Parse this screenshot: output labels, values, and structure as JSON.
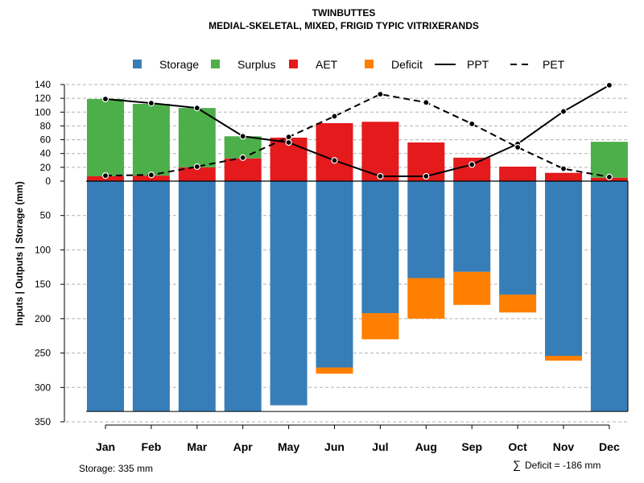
{
  "chart_data": {
    "type": "bar",
    "title": "TWINBUTTES",
    "subtitle": "MEDIAL-SKELETAL, MIXED, FRIGID TYPIC VITRIXERANDS",
    "ylabel": "Inputs | Outputs | Storage     (mm)",
    "categories": [
      "Jan",
      "Feb",
      "Mar",
      "Apr",
      "May",
      "Jun",
      "Jul",
      "Aug",
      "Sep",
      "Oct",
      "Nov",
      "Dec"
    ],
    "upper_ticks": [
      "0",
      "20",
      "40",
      "60",
      "80",
      "100",
      "120",
      "140"
    ],
    "lower_ticks": [
      "50",
      "100",
      "150",
      "200",
      "250",
      "300",
      "350"
    ],
    "upper_ylim": [
      0,
      140
    ],
    "lower_ylim": [
      0,
      350
    ],
    "legend": [
      {
        "label": "Storage",
        "color": "#377EB8",
        "kind": "square"
      },
      {
        "label": "Surplus",
        "color": "#4DAF4A",
        "kind": "square"
      },
      {
        "label": "AET",
        "color": "#E41A1C",
        "kind": "square"
      },
      {
        "label": "Deficit",
        "color": "#FF7F00",
        "kind": "square"
      },
      {
        "label": "PPT",
        "color": "#000000",
        "kind": "solid-line"
      },
      {
        "label": "PET",
        "color": "#000000",
        "kind": "dashed-line"
      }
    ],
    "series": [
      {
        "name": "AET",
        "color": "#E41A1C",
        "values": [
          7,
          8,
          20,
          33,
          63,
          84,
          86,
          56,
          34,
          21,
          12,
          5
        ]
      },
      {
        "name": "Surplus",
        "color": "#4DAF4A",
        "values": [
          112,
          104,
          86,
          32,
          0,
          0,
          0,
          0,
          0,
          0,
          0,
          52
        ]
      },
      {
        "name": "Storage",
        "color": "#377EB8",
        "values": [
          335,
          335,
          335,
          335,
          326,
          271,
          192,
          141,
          132,
          165,
          254,
          335
        ]
      },
      {
        "name": "Deficit",
        "color": "#FF7F00",
        "values": [
          0,
          0,
          0,
          0,
          0,
          9,
          38,
          59,
          48,
          26,
          7,
          0
        ]
      },
      {
        "name": "PPT",
        "color": "#000000",
        "values": [
          119,
          113,
          106,
          65,
          56,
          30,
          7,
          7,
          24,
          54,
          101,
          139
        ]
      },
      {
        "name": "PET",
        "color": "#000000",
        "values": [
          8,
          9,
          21,
          34,
          64,
          94,
          126,
          114,
          83,
          49,
          18,
          6
        ]
      }
    ],
    "grid": true
  },
  "footer": {
    "storage_note": "Storage: 335 mm",
    "deficit_symbol": "∑",
    "deficit_note": "Deficit = -186 mm"
  }
}
